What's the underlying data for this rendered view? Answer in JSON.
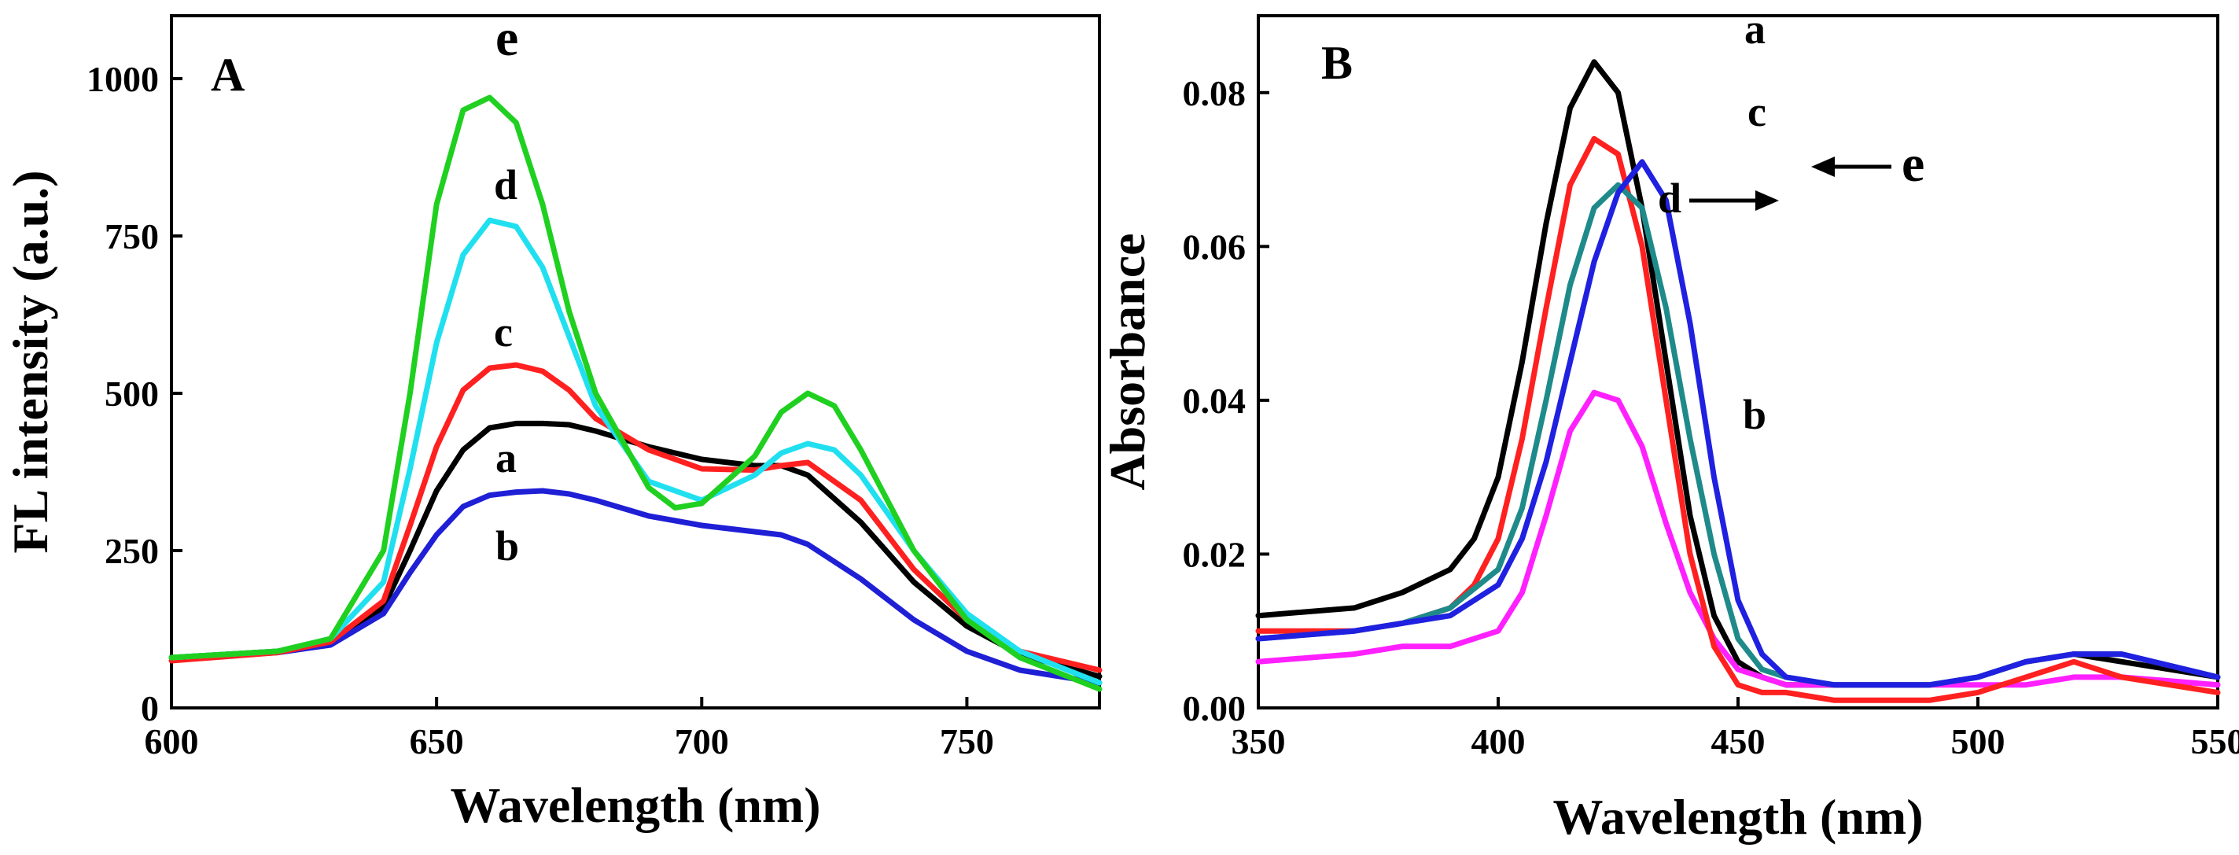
{
  "chart_data": [
    {
      "type": "line",
      "panel_label": "A",
      "xlabel": "Wavelength (nm)",
      "ylabel": "FL intensity (a.u.)",
      "xlim": [
        600,
        775
      ],
      "ylim": [
        0,
        1100
      ],
      "xticks": [
        600,
        650,
        700,
        750
      ],
      "yticks": [
        0,
        250,
        500,
        750,
        1000
      ],
      "grid": false,
      "series": [
        {
          "name": "a",
          "color": "#000000",
          "x": [
            600,
            620,
            630,
            640,
            645,
            650,
            655,
            660,
            665,
            670,
            675,
            680,
            690,
            700,
            710,
            715,
            720,
            730,
            740,
            750,
            760,
            775
          ],
          "y": [
            80,
            90,
            105,
            160,
            250,
            345,
            410,
            445,
            452,
            452,
            450,
            440,
            415,
            395,
            385,
            385,
            370,
            295,
            200,
            130,
            85,
            50
          ]
        },
        {
          "name": "b",
          "color": "#1f1fd6",
          "x": [
            600,
            620,
            630,
            640,
            645,
            650,
            655,
            660,
            665,
            670,
            675,
            680,
            690,
            700,
            710,
            715,
            720,
            730,
            740,
            750,
            760,
            775
          ],
          "y": [
            80,
            88,
            100,
            150,
            215,
            275,
            320,
            338,
            343,
            345,
            340,
            330,
            305,
            290,
            280,
            275,
            260,
            205,
            140,
            90,
            60,
            40
          ]
        },
        {
          "name": "c",
          "color": "#ff2020",
          "x": [
            600,
            620,
            630,
            640,
            645,
            650,
            655,
            660,
            665,
            670,
            675,
            680,
            690,
            700,
            710,
            715,
            720,
            730,
            740,
            750,
            760,
            775
          ],
          "y": [
            75,
            88,
            105,
            170,
            290,
            415,
            505,
            540,
            545,
            535,
            505,
            460,
            410,
            380,
            378,
            385,
            390,
            330,
            220,
            140,
            90,
            60
          ]
        },
        {
          "name": "d",
          "color": "#20e0f0",
          "x": [
            600,
            620,
            630,
            640,
            645,
            650,
            655,
            660,
            665,
            670,
            675,
            680,
            690,
            700,
            710,
            715,
            720,
            725,
            730,
            740,
            750,
            760,
            775
          ],
          "y": [
            80,
            90,
            110,
            200,
            380,
            580,
            720,
            775,
            765,
            700,
            590,
            480,
            360,
            330,
            370,
            405,
            420,
            410,
            370,
            250,
            150,
            90,
            40
          ]
        },
        {
          "name": "e",
          "color": "#20d020",
          "x": [
            600,
            620,
            630,
            640,
            645,
            650,
            655,
            660,
            665,
            670,
            675,
            680,
            690,
            695,
            700,
            710,
            715,
            720,
            725,
            730,
            740,
            750,
            760,
            775
          ],
          "y": [
            80,
            90,
            110,
            250,
            500,
            800,
            950,
            970,
            930,
            800,
            630,
            500,
            350,
            318,
            325,
            400,
            470,
            500,
            480,
            410,
            250,
            140,
            80,
            30
          ]
        }
      ],
      "annotations": [
        "a",
        "b",
        "c",
        "d",
        "e"
      ]
    },
    {
      "type": "line",
      "panel_label": "B",
      "xlabel": "Wavelength (nm)",
      "ylabel": "Absorbance",
      "xlim": [
        350,
        550
      ],
      "ylim": [
        0,
        0.09
      ],
      "xticks": [
        350,
        400,
        450,
        500,
        550
      ],
      "yticks": [
        0.0,
        0.02,
        0.04,
        0.06,
        0.08
      ],
      "ytick_labels": [
        "0.00",
        "0.02",
        "0.04",
        "0.06",
        "0.08"
      ],
      "grid": false,
      "series": [
        {
          "name": "a",
          "color": "#000000",
          "x": [
            350,
            370,
            380,
            390,
            395,
            400,
            405,
            410,
            415,
            420,
            425,
            430,
            435,
            440,
            445,
            450,
            455,
            460,
            470,
            480,
            490,
            500,
            510,
            520,
            530,
            550
          ],
          "y": [
            0.012,
            0.013,
            0.015,
            0.018,
            0.022,
            0.03,
            0.045,
            0.063,
            0.078,
            0.084,
            0.08,
            0.065,
            0.045,
            0.025,
            0.012,
            0.006,
            0.004,
            0.003,
            0.003,
            0.003,
            0.003,
            0.004,
            0.006,
            0.007,
            0.006,
            0.004
          ]
        },
        {
          "name": "b",
          "color": "#ff20ff",
          "x": [
            350,
            370,
            380,
            390,
            400,
            405,
            410,
            415,
            420,
            425,
            430,
            435,
            440,
            445,
            450,
            455,
            460,
            470,
            480,
            490,
            500,
            510,
            520,
            530,
            550
          ],
          "y": [
            0.006,
            0.007,
            0.008,
            0.008,
            0.01,
            0.015,
            0.025,
            0.036,
            0.041,
            0.04,
            0.034,
            0.024,
            0.015,
            0.009,
            0.005,
            0.004,
            0.003,
            0.003,
            0.003,
            0.003,
            0.003,
            0.003,
            0.004,
            0.004,
            0.003
          ]
        },
        {
          "name": "c",
          "color": "#ff2020",
          "x": [
            350,
            370,
            380,
            390,
            395,
            400,
            405,
            410,
            415,
            420,
            425,
            430,
            435,
            440,
            445,
            450,
            455,
            460,
            470,
            480,
            490,
            500,
            510,
            520,
            530,
            550
          ],
          "y": [
            0.01,
            0.01,
            0.011,
            0.013,
            0.016,
            0.022,
            0.035,
            0.052,
            0.068,
            0.074,
            0.072,
            0.06,
            0.04,
            0.02,
            0.008,
            0.003,
            0.002,
            0.002,
            0.001,
            0.001,
            0.001,
            0.002,
            0.004,
            0.006,
            0.004,
            0.002
          ]
        },
        {
          "name": "d",
          "color": "#1f8a8a",
          "x": [
            350,
            370,
            380,
            390,
            400,
            405,
            410,
            415,
            420,
            425,
            430,
            435,
            440,
            445,
            450,
            455,
            460,
            470,
            480,
            490,
            500,
            510,
            520,
            530,
            550
          ],
          "y": [
            0.009,
            0.01,
            0.011,
            0.013,
            0.018,
            0.026,
            0.04,
            0.055,
            0.065,
            0.068,
            0.065,
            0.052,
            0.035,
            0.02,
            0.009,
            0.005,
            0.004,
            0.003,
            0.003,
            0.003,
            0.004,
            0.006,
            0.007,
            0.007,
            0.004
          ]
        },
        {
          "name": "e",
          "color": "#2020e0",
          "x": [
            350,
            370,
            380,
            390,
            400,
            405,
            410,
            415,
            420,
            425,
            430,
            435,
            440,
            445,
            450,
            455,
            460,
            470,
            480,
            490,
            500,
            510,
            520,
            530,
            550
          ],
          "y": [
            0.009,
            0.01,
            0.011,
            0.012,
            0.016,
            0.022,
            0.032,
            0.045,
            0.058,
            0.067,
            0.071,
            0.066,
            0.05,
            0.03,
            0.014,
            0.007,
            0.004,
            0.003,
            0.003,
            0.003,
            0.004,
            0.006,
            0.007,
            0.007,
            0.004
          ]
        }
      ],
      "annotations": [
        "a",
        "b",
        "c",
        "d",
        "e"
      ]
    }
  ]
}
